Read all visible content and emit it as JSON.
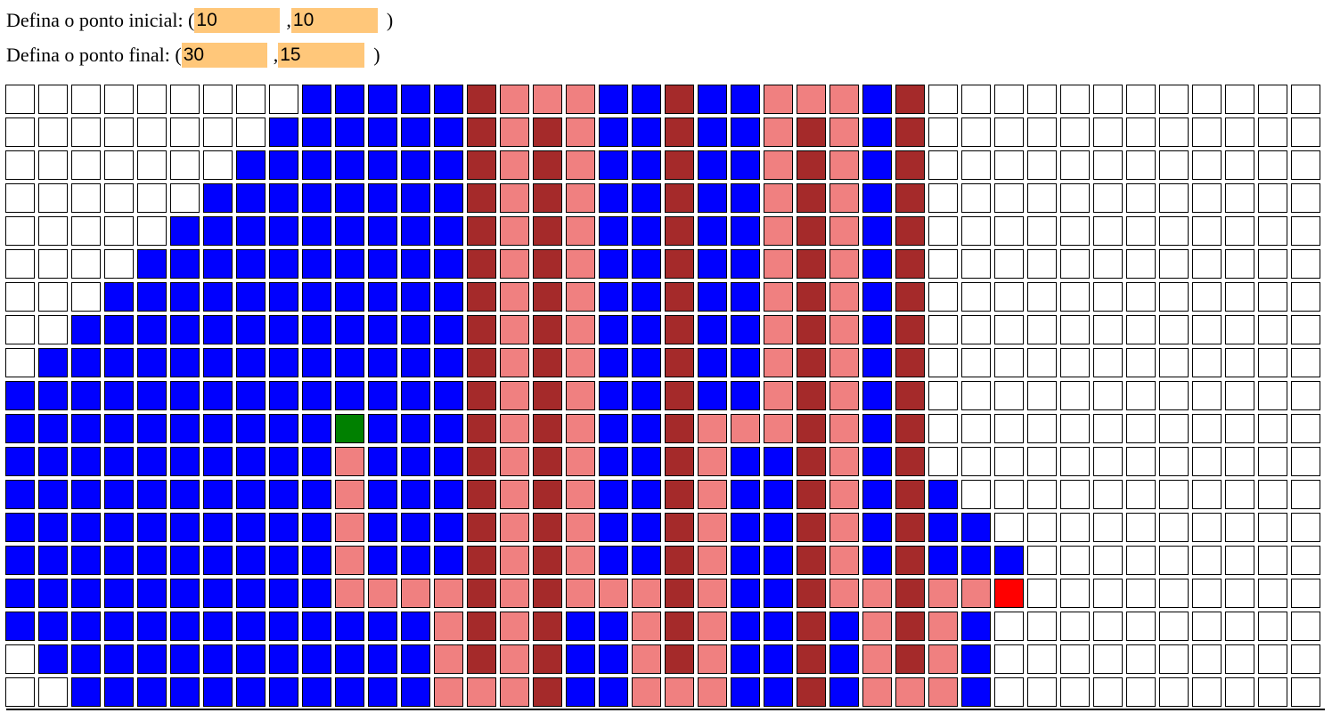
{
  "controls": {
    "start": {
      "label": "Defina o ponto inicial: (",
      "x": "10",
      "sep": ",",
      "y": "10",
      "close": ")"
    },
    "end": {
      "label": "Defina o ponto final: (",
      "x": "30",
      "sep": ",",
      "y": "15",
      "close": ")"
    }
  },
  "grid": {
    "cols": 40,
    "legend": {
      "W": {
        "name": "empty",
        "color": "#ffffff"
      },
      "B": {
        "name": "visited",
        "color": "#0000ff"
      },
      "D": {
        "name": "obstacle",
        "color": "#a52a2a"
      },
      "P": {
        "name": "path",
        "color": "#f08080"
      },
      "G": {
        "name": "start",
        "color": "#008000"
      },
      "R": {
        "name": "end",
        "color": "#ff0000"
      }
    },
    "rows": [
      "WWWWWWWWWBBBBBDPPPBBDBBPPPBDWWWWWWWWWWWW",
      "WWWWWWWWBBBBBBDPDPBBDBBPDPBDWWWWWWWWWWWW",
      "WWWWWWWBBBBBBBDPDPBBDBBPDPBDWWWWWWWWWWWW",
      "WWWWWWBBBBBBBBDPDPBBDBBPDPBDWWWWWWWWWWWW",
      "WWWWWBBBBBBBBBDPDPBBDBBPDPBDWWWWWWWWWWWW",
      "WWWWBBBBBBBBBBDPDPBBDBBPDPBDWWWWWWWWWWWW",
      "WWWBBBBBBBBBBBDPDPBBDBBPDPBDWWWWWWWWWWWW",
      "WWBBBBBBBBBBBBDPDPBBDBBPDPBDWWWWWWWWWWWW",
      "WBBBBBBBBBBBBBDPDPBBDBBPDPBDWWWWWWWWWWWW",
      "BBBBBBBBBBBBBBDPDPBBDBBPDPBDWWWWWWWWWWWW",
      "BBBBBBBBBBGBBBDPDPBBDPPPDPBDWWWWWWWWWWWW",
      "BBBBBBBBBBPBBBDPDPBBDPBBDPBDWWWWWWWWWWWW",
      "BBBBBBBBBBPBBBDPDPBBDPBBDPBDBWWWWWWWWWWW",
      "BBBBBBBBBBPBBBDPDPBBDPBBDPBDBBWWWWWWWWWW",
      "BBBBBBBBBBPBBBDPDPBBDPBBDPBDBBBWWWWWWWWW",
      "BBBBBBBBBBPPPPDPDPPPDPBBDPPDPPRWWWWWWWWW",
      "BBBBBBBBBBBBBPDPDBBPDPBBDBPDPBWWWWWWWWWW",
      "WBBBBBBBBBBBBPDPDBBPDPBBDBPDPBWWWWWWWWWW",
      "WWBBBBBBBBBBBPPPDBBPPPBBDBPPPBWWWWWWWWWW"
    ]
  }
}
